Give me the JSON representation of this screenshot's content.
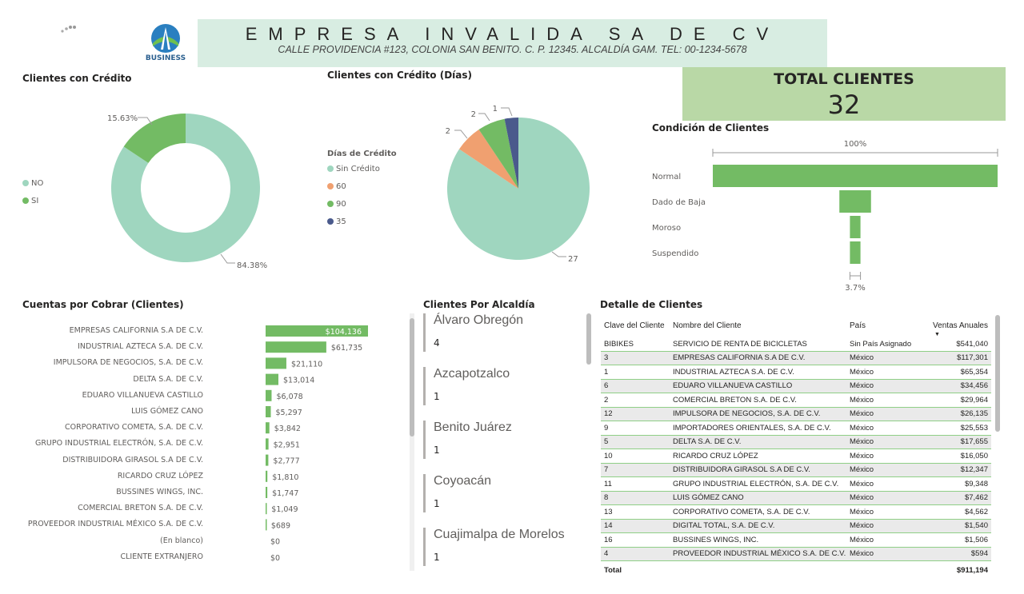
{
  "header": {
    "logo_text": "BUSINESS",
    "company_name": "EMPRESA INVALIDA SA DE CV",
    "address": "CALLE PROVIDENCIA #123, COLONIA SAN BENITO. C. P. 12345. ALCALDÍA GAM. TEL: 00-1234-5678"
  },
  "total_clientes": {
    "label": "TOTAL CLIENTES",
    "value": "32"
  },
  "credit_donut": {
    "title": "Clientes con Crédito",
    "legend": [
      {
        "label": "NO",
        "color": "#9fd6bf"
      },
      {
        "label": "SI",
        "color": "#73bb64"
      }
    ],
    "chart_data": {
      "type": "pie",
      "categories": [
        "NO",
        "SI"
      ],
      "values": [
        84.38,
        15.63
      ],
      "labels": [
        "84.38%",
        "15.63%"
      ]
    }
  },
  "credit_days_pie": {
    "title": "Clientes con Crédito (Días)",
    "legend_title": "Días de Crédito",
    "legend": [
      {
        "label": "Sin Crédito",
        "color": "#9fd6bf"
      },
      {
        "label": "60",
        "color": "#f0a070"
      },
      {
        "label": "90",
        "color": "#73bb64"
      },
      {
        "label": "35",
        "color": "#4a5a8c"
      }
    ],
    "chart_data": {
      "type": "pie",
      "categories": [
        "Sin Crédito",
        "60",
        "90",
        "35"
      ],
      "values": [
        27,
        2,
        2,
        1
      ]
    }
  },
  "condicion": {
    "title": "Condición de Clientes",
    "top_label": "100%",
    "bottom_label": "3.7%",
    "chart_data": {
      "type": "bar",
      "categories": [
        "Normal",
        "Dado de Baja",
        "Moroso",
        "Suspendido"
      ],
      "values": [
        27,
        3,
        1,
        1
      ]
    }
  },
  "cuentas_por_cobrar": {
    "title": "Cuentas por Cobrar (Clientes)",
    "chart_data": {
      "type": "bar",
      "categories": [
        "EMPRESAS CALIFORNIA S.A DE C.V.",
        "INDUSTRIAL AZTECA S.A. DE C.V.",
        "IMPULSORA DE NEGOCIOS, S.A. DE C.V.",
        "DELTA S.A. DE C.V.",
        "EDUARO VILLANUEVA CASTILLO",
        "LUIS GÓMEZ CANO",
        "CORPORATIVO COMETA, S.A. DE C.V.",
        "GRUPO INDUSTRIAL ELECTRÓN, S.A. DE C.V.",
        "DISTRIBUIDORA GIRASOL S.A DE C.V.",
        "RICARDO CRUZ LÓPEZ",
        "BUSSINES WINGS, INC.",
        "COMERCIAL BRETON S.A. DE C.V.",
        "PROVEEDOR INDUSTRIAL MÉXICO S.A. DE C.V.",
        "(En blanco)",
        "CLIENTE EXTRANJERO"
      ],
      "values": [
        104136,
        61735,
        21110,
        13014,
        6078,
        5297,
        3842,
        2951,
        2777,
        1810,
        1747,
        1049,
        689,
        0,
        0
      ],
      "value_labels": [
        "$104,136",
        "$61,735",
        "$21,110",
        "$13,014",
        "$6,078",
        "$5,297",
        "$3,842",
        "$2,951",
        "$2,777",
        "$1,810",
        "$1,747",
        "$1,049",
        "$689",
        "$0",
        "$0"
      ]
    }
  },
  "alcaldia": {
    "title": "Clientes Por Alcaldía",
    "items": [
      {
        "name": "Álvaro Obregón",
        "count": "4"
      },
      {
        "name": "Azcapotzalco",
        "count": "1"
      },
      {
        "name": "Benito Juárez",
        "count": "1"
      },
      {
        "name": "Coyoacán",
        "count": "1"
      },
      {
        "name": "Cuajimalpa de Morelos",
        "count": "1"
      }
    ]
  },
  "detalle": {
    "title": "Detalle de Clientes",
    "columns": [
      "Clave del Cliente",
      "Nombre del Cliente",
      "País",
      "Ventas Anuales"
    ],
    "rows": [
      [
        "BIBIKES",
        "SERVICIO DE RENTA DE BICICLETAS",
        "Sin País Asignado",
        "$541,040"
      ],
      [
        "3",
        "EMPRESAS CALIFORNIA S.A DE C.V.",
        "México",
        "$117,301"
      ],
      [
        "1",
        "INDUSTRIAL AZTECA S.A. DE C.V.",
        "México",
        "$65,354"
      ],
      [
        "6",
        "EDUARO VILLANUEVA CASTILLO",
        "México",
        "$34,456"
      ],
      [
        "2",
        "COMERCIAL BRETON S.A. DE C.V.",
        "México",
        "$29,964"
      ],
      [
        "12",
        "IMPULSORA DE NEGOCIOS, S.A. DE C.V.",
        "México",
        "$26,135"
      ],
      [
        "9",
        "IMPORTADORES ORIENTALES, S.A. DE C.V.",
        "México",
        "$25,553"
      ],
      [
        "5",
        "DELTA S.A. DE C.V.",
        "México",
        "$17,655"
      ],
      [
        "10",
        "RICARDO CRUZ LÓPEZ",
        "México",
        "$16,050"
      ],
      [
        "7",
        "DISTRIBUIDORA GIRASOL S.A DE C.V.",
        "México",
        "$12,347"
      ],
      [
        "11",
        "GRUPO INDUSTRIAL ELECTRÓN, S.A. DE C.V.",
        "México",
        "$9,348"
      ],
      [
        "8",
        "LUIS GÓMEZ CANO",
        "México",
        "$7,462"
      ],
      [
        "13",
        "CORPORATIVO COMETA, S.A. DE C.V.",
        "México",
        "$4,562"
      ],
      [
        "14",
        "DIGITAL TOTAL, S.A. DE C.V.",
        "México",
        "$1,540"
      ],
      [
        "16",
        "BUSSINES WINGS, INC.",
        "México",
        "$1,506"
      ],
      [
        "4",
        "PROVEEDOR INDUSTRIAL MÉXICO S.A. DE C.V.",
        "México",
        "$594"
      ]
    ],
    "total_label": "Total",
    "total_value": "$911,194"
  },
  "colors": {
    "green": "#73bb64",
    "mint": "#9fd6bf",
    "orange": "#f0a070",
    "navy": "#4a5a8c",
    "header_bg": "#d8ede2",
    "total_bg": "#b9d8a6"
  }
}
